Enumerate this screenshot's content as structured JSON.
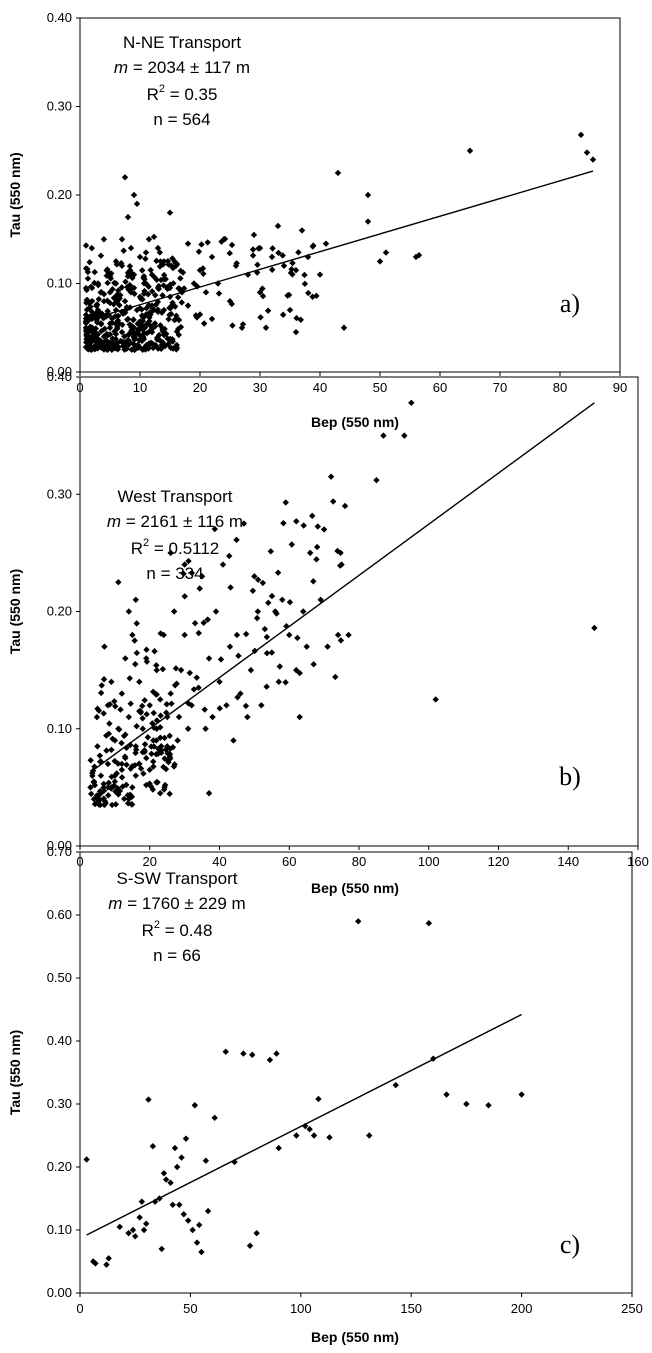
{
  "chart_data": [
    {
      "type": "scatter",
      "panel_label": "a)",
      "xlabel": "Bep (550 nm)",
      "ylabel": "Tau (550 nm)",
      "xlim": [
        0,
        90
      ],
      "ylim": [
        0,
        0.4
      ],
      "x_ticks": [
        "0",
        "10",
        "20",
        "30",
        "40",
        "50",
        "60",
        "70",
        "80",
        "90"
      ],
      "y_ticks": [
        "0.00",
        "0.10",
        "0.20",
        "0.30",
        "0.40"
      ],
      "annotation": {
        "title": "N-NE Transport",
        "m_symbol": "m",
        "m_value": " = 2034 ± 117 m",
        "r2_symbol": "R",
        "r2_exp": "2",
        "r2_value": " = 0.35",
        "n": "n = 564"
      },
      "fit": {
        "x": [
          0.5,
          85.5
        ],
        "y": [
          0.057,
          0.227
        ]
      },
      "points": [
        [
          1,
          0.05
        ],
        [
          1.5,
          0.035
        ],
        [
          2,
          0.06
        ],
        [
          2.5,
          0.045
        ],
        [
          3,
          0.07
        ],
        [
          3,
          0.028
        ],
        [
          3.5,
          0.055
        ],
        [
          4,
          0.08
        ],
        [
          4,
          0.04
        ],
        [
          4.5,
          0.065
        ],
        [
          5,
          0.09
        ],
        [
          5,
          0.05
        ],
        [
          5.5,
          0.033
        ],
        [
          6,
          0.07
        ],
        [
          6,
          0.1
        ],
        [
          6.5,
          0.055
        ],
        [
          7,
          0.045
        ],
        [
          7,
          0.12
        ],
        [
          7,
          0.15
        ],
        [
          7.5,
          0.08
        ],
        [
          7.5,
          0.22
        ],
        [
          8,
          0.06
        ],
        [
          8,
          0.175
        ],
        [
          8,
          0.03
        ],
        [
          8.5,
          0.09
        ],
        [
          8.5,
          0.14
        ],
        [
          9,
          0.2
        ],
        [
          9,
          0.11
        ],
        [
          9,
          0.05
        ],
        [
          9.5,
          0.19
        ],
        [
          9.5,
          0.07
        ],
        [
          10,
          0.13
        ],
        [
          10,
          0.085
        ],
        [
          10.5,
          0.04
        ],
        [
          11,
          0.1
        ],
        [
          11,
          0.065
        ],
        [
          11.5,
          0.15
        ],
        [
          12,
          0.075
        ],
        [
          12,
          0.11
        ],
        [
          12.5,
          0.055
        ],
        [
          13,
          0.095
        ],
        [
          13,
          0.14
        ],
        [
          14,
          0.07
        ],
        [
          14,
          0.105
        ],
        [
          15,
          0.18
        ],
        [
          15,
          0.085
        ],
        [
          16,
          0.12
        ],
        [
          16,
          0.06
        ],
        [
          17,
          0.09
        ],
        [
          18,
          0.145
        ],
        [
          18,
          0.075
        ],
        [
          19,
          0.1
        ],
        [
          20,
          0.065
        ],
        [
          20,
          0.115
        ],
        [
          21,
          0.09
        ],
        [
          22,
          0.13
        ],
        [
          22,
          0.06
        ],
        [
          23,
          0.1
        ],
        [
          24,
          0.15
        ],
        [
          25,
          0.08
        ],
        [
          26,
          0.12
        ],
        [
          27,
          0.05
        ],
        [
          28,
          0.11
        ],
        [
          29,
          0.155
        ],
        [
          30,
          0.14
        ],
        [
          30,
          0.09
        ],
        [
          31,
          0.05
        ],
        [
          32,
          0.13
        ],
        [
          33,
          0.165
        ],
        [
          34,
          0.12
        ],
        [
          35,
          0.07
        ],
        [
          36,
          0.115
        ],
        [
          36,
          0.045
        ],
        [
          37,
          0.16
        ],
        [
          38,
          0.13
        ],
        [
          40,
          0.11
        ],
        [
          41,
          0.145
        ],
        [
          43,
          0.225
        ],
        [
          44,
          0.05
        ],
        [
          48,
          0.2
        ],
        [
          48,
          0.17
        ],
        [
          50,
          0.125
        ],
        [
          51,
          0.135
        ],
        [
          56,
          0.13
        ],
        [
          56.5,
          0.132
        ],
        [
          65,
          0.25
        ],
        [
          83.5,
          0.268
        ],
        [
          84.5,
          0.248
        ],
        [
          85.5,
          0.24
        ],
        [
          2,
          0.095
        ],
        [
          3,
          0.1
        ],
        [
          4,
          0.088
        ],
        [
          5,
          0.078
        ],
        [
          5,
          0.108
        ],
        [
          6,
          0.082
        ],
        [
          6,
          0.125
        ],
        [
          7,
          0.068
        ],
        [
          8,
          0.112
        ],
        [
          9,
          0.095
        ],
        [
          10,
          0.072
        ],
        [
          11,
          0.135
        ],
        [
          12,
          0.045
        ],
        [
          13,
          0.068
        ],
        [
          14,
          0.125
        ],
        [
          15,
          0.095
        ]
      ],
      "markers": 564
    },
    {
      "type": "scatter",
      "panel_label": "b)",
      "xlabel": "Bep (550 nm)",
      "ylabel": "Tau (550 nm)",
      "xlim": [
        0,
        160
      ],
      "ylim": [
        0,
        0.4
      ],
      "x_ticks": [
        "0",
        "20",
        "40",
        "60",
        "80",
        "100",
        "120",
        "140",
        "160"
      ],
      "y_ticks": [
        "0.00",
        "0.10",
        "0.20",
        "0.30",
        "0.40"
      ],
      "annotation": {
        "title": "West Transport",
        "m_symbol": "m",
        "m_value": " = 2161 ± 116 m",
        "r2_symbol": "R",
        "r2_exp": "2",
        "r2_value": " = 0.5112",
        "n": "n = 334"
      },
      "fit": {
        "x": [
          3,
          147.5
        ],
        "y": [
          0.063,
          0.378
        ]
      },
      "points": [
        [
          3,
          0.05
        ],
        [
          4,
          0.055
        ],
        [
          5,
          0.04
        ],
        [
          5,
          0.085
        ],
        [
          6,
          0.06
        ],
        [
          7,
          0.035
        ],
        [
          7,
          0.17
        ],
        [
          8,
          0.07
        ],
        [
          8,
          0.12
        ],
        [
          9,
          0.05
        ],
        [
          9,
          0.14
        ],
        [
          10,
          0.09
        ],
        [
          10,
          0.06
        ],
        [
          11,
          0.225
        ],
        [
          11,
          0.1
        ],
        [
          12,
          0.13
        ],
        [
          12,
          0.065
        ],
        [
          13,
          0.16
        ],
        [
          13,
          0.075
        ],
        [
          14,
          0.2
        ],
        [
          14,
          0.11
        ],
        [
          15,
          0.05
        ],
        [
          15,
          0.18
        ],
        [
          16,
          0.085
        ],
        [
          16,
          0.21
        ],
        [
          17,
          0.14
        ],
        [
          17,
          0.07
        ],
        [
          18,
          0.1
        ],
        [
          19,
          0.16
        ],
        [
          19,
          0.075
        ],
        [
          20,
          0.12
        ],
        [
          21,
          0.09
        ],
        [
          22,
          0.15
        ],
        [
          23,
          0.045
        ],
        [
          24,
          0.18
        ],
        [
          25,
          0.11
        ],
        [
          26,
          0.25
        ],
        [
          26,
          0.13
        ],
        [
          27,
          0.2
        ],
        [
          28,
          0.09
        ],
        [
          29,
          0.15
        ],
        [
          30,
          0.18
        ],
        [
          30,
          0.24
        ],
        [
          31,
          0.1
        ],
        [
          32,
          0.12
        ],
        [
          33,
          0.19
        ],
        [
          34,
          0.135
        ],
        [
          35,
          0.23
        ],
        [
          36,
          0.1
        ],
        [
          37,
          0.16
        ],
        [
          37,
          0.045
        ],
        [
          38,
          0.11
        ],
        [
          39,
          0.2
        ],
        [
          40,
          0.14
        ],
        [
          41,
          0.24
        ],
        [
          42,
          0.12
        ],
        [
          43,
          0.17
        ],
        [
          44,
          0.09
        ],
        [
          45,
          0.18
        ],
        [
          46,
          0.13
        ],
        [
          47,
          0.275
        ],
        [
          48,
          0.11
        ],
        [
          49,
          0.15
        ],
        [
          50,
          0.23
        ],
        [
          51,
          0.2
        ],
        [
          52,
          0.12
        ],
        [
          53,
          0.185
        ],
        [
          55,
          0.165
        ],
        [
          56,
          0.2
        ],
        [
          57,
          0.14
        ],
        [
          58,
          0.21
        ],
        [
          59,
          0.293
        ],
        [
          60,
          0.18
        ],
        [
          62,
          0.15
        ],
        [
          63,
          0.11
        ],
        [
          64,
          0.2
        ],
        [
          65,
          0.17
        ],
        [
          66,
          0.25
        ],
        [
          67,
          0.155
        ],
        [
          68,
          0.255
        ],
        [
          69,
          0.21
        ],
        [
          70,
          0.27
        ],
        [
          71,
          0.17
        ],
        [
          72,
          0.315
        ],
        [
          74,
          0.18
        ],
        [
          75,
          0.24
        ],
        [
          76,
          0.29
        ],
        [
          77,
          0.18
        ],
        [
          85,
          0.312
        ],
        [
          87,
          0.35
        ],
        [
          93,
          0.35
        ],
        [
          95,
          0.378
        ],
        [
          102,
          0.125
        ],
        [
          147.5,
          0.186
        ],
        [
          4,
          0.04
        ],
        [
          6,
          0.045
        ],
        [
          8,
          0.05
        ],
        [
          10,
          0.055
        ],
        [
          12,
          0.07
        ],
        [
          14,
          0.04
        ],
        [
          16,
          0.06
        ],
        [
          18,
          0.08
        ],
        [
          20,
          0.065
        ],
        [
          22,
          0.1
        ],
        [
          6,
          0.072
        ],
        [
          9,
          0.082
        ],
        [
          11,
          0.044
        ],
        [
          13,
          0.095
        ],
        [
          15,
          0.068
        ],
        [
          17,
          0.115
        ],
        [
          19,
          0.052
        ],
        [
          21,
          0.072
        ],
        [
          23,
          0.125
        ],
        [
          25,
          0.085
        ]
      ],
      "markers": 334
    },
    {
      "type": "scatter",
      "panel_label": "c)",
      "xlabel": "Bep (550 nm)",
      "ylabel": "Tau (550 nm)",
      "xlim": [
        0,
        250
      ],
      "ylim": [
        0,
        0.7
      ],
      "x_ticks": [
        "0",
        "50",
        "100",
        "150",
        "200",
        "250"
      ],
      "y_ticks": [
        "0.00",
        "0.10",
        "0.20",
        "0.30",
        "0.40",
        "0.50",
        "0.60",
        "0.70"
      ],
      "annotation": {
        "title": "S-SW Transport",
        "m_symbol": "m",
        "m_value": " = 1760 ± 229 m",
        "r2_symbol": "R",
        "r2_exp": "2",
        "r2_value": " = 0.48",
        "n": "n = 66"
      },
      "fit": {
        "x": [
          3,
          200
        ],
        "y": [
          0.092,
          0.442
        ]
      },
      "points": [
        [
          3,
          0.212
        ],
        [
          6,
          0.05
        ],
        [
          7,
          0.047
        ],
        [
          12,
          0.045
        ],
        [
          13,
          0.055
        ],
        [
          18,
          0.105
        ],
        [
          22,
          0.095
        ],
        [
          24,
          0.1
        ],
        [
          25,
          0.09
        ],
        [
          27,
          0.12
        ],
        [
          28,
          0.145
        ],
        [
          29,
          0.1
        ],
        [
          30,
          0.11
        ],
        [
          31,
          0.307
        ],
        [
          33,
          0.233
        ],
        [
          34,
          0.145
        ],
        [
          36,
          0.15
        ],
        [
          37,
          0.07
        ],
        [
          38,
          0.19
        ],
        [
          39,
          0.18
        ],
        [
          41,
          0.175
        ],
        [
          42,
          0.14
        ],
        [
          43,
          0.23
        ],
        [
          44,
          0.2
        ],
        [
          45,
          0.14
        ],
        [
          46,
          0.215
        ],
        [
          47,
          0.125
        ],
        [
          48,
          0.245
        ],
        [
          49,
          0.115
        ],
        [
          51,
          0.1
        ],
        [
          52,
          0.298
        ],
        [
          53,
          0.08
        ],
        [
          54,
          0.108
        ],
        [
          55,
          0.065
        ],
        [
          57,
          0.21
        ],
        [
          58,
          0.13
        ],
        [
          61,
          0.278
        ],
        [
          66,
          0.383
        ],
        [
          70,
          0.208
        ],
        [
          74,
          0.38
        ],
        [
          77,
          0.075
        ],
        [
          78,
          0.378
        ],
        [
          80,
          0.095
        ],
        [
          86,
          0.37
        ],
        [
          89,
          0.38
        ],
        [
          90,
          0.23
        ],
        [
          98,
          0.25
        ],
        [
          102,
          0.265
        ],
        [
          104,
          0.26
        ],
        [
          106,
          0.25
        ],
        [
          108,
          0.308
        ],
        [
          113,
          0.247
        ],
        [
          126,
          0.59
        ],
        [
          131,
          0.25
        ],
        [
          143,
          0.33
        ],
        [
          158,
          0.587
        ],
        [
          160,
          0.372
        ],
        [
          166,
          0.315
        ],
        [
          175,
          0.3
        ],
        [
          185,
          0.298
        ],
        [
          200,
          0.315
        ]
      ],
      "markers": 66
    }
  ]
}
